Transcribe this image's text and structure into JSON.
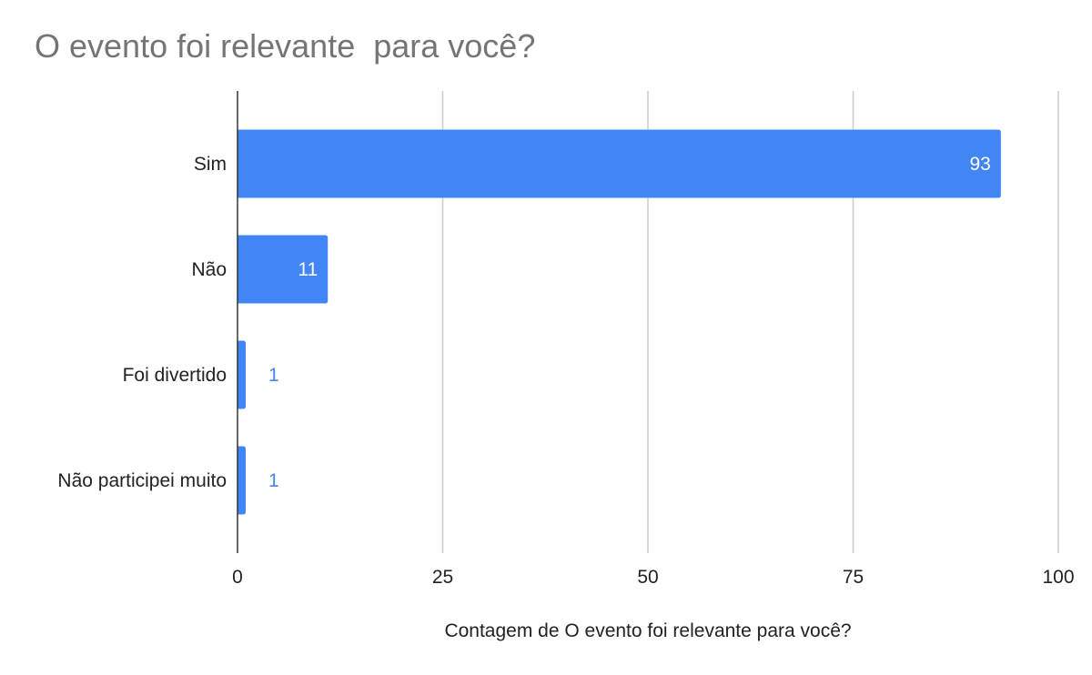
{
  "chart_data": {
    "type": "bar",
    "orientation": "horizontal",
    "title": "O evento foi relevante  para você?",
    "xlabel": "Contagem de O evento foi relevante  para você?",
    "ylabel": "",
    "categories": [
      "Sim",
      "Não",
      "Foi divertido",
      "Não participei muito"
    ],
    "values": [
      93,
      11,
      1,
      1
    ],
    "xlim": [
      0,
      100
    ],
    "xticks": [
      0,
      25,
      50,
      75,
      100
    ],
    "grid": true,
    "legend": "none",
    "bar_color": "#4285f4",
    "label_inside_color": "#ffffff",
    "label_outside_color": "#4285f4"
  }
}
